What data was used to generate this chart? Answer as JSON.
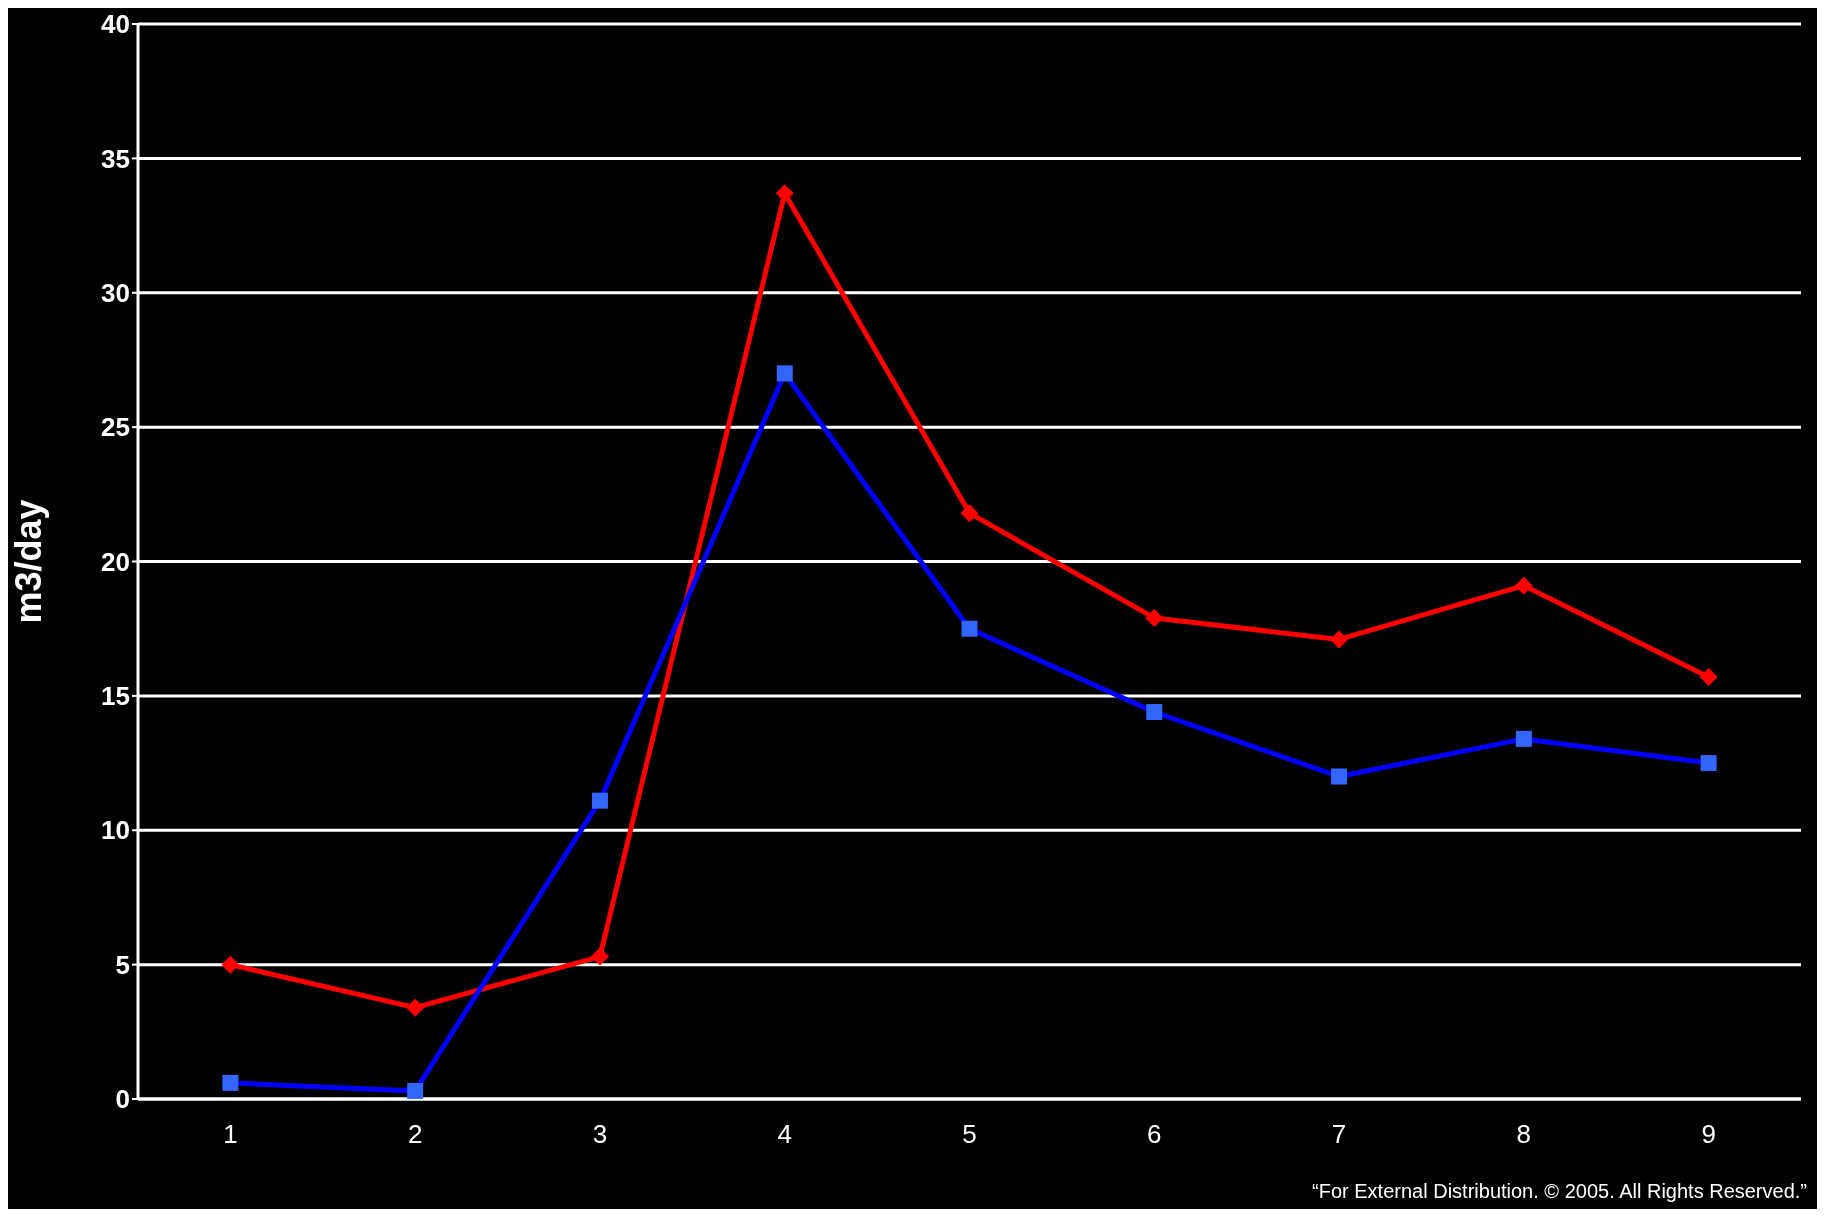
{
  "chart_data": {
    "type": "line",
    "ylabel": "m3/day",
    "categories": [
      "1",
      "2",
      "3",
      "4",
      "5",
      "6",
      "7",
      "8",
      "9"
    ],
    "series": [
      {
        "color": "#ff0000",
        "marker": "diamond",
        "values": [
          5.0,
          3.4,
          5.3,
          33.7,
          21.8,
          17.9,
          17.1,
          19.1,
          15.7
        ]
      },
      {
        "color": "#0000ff",
        "marker": "square",
        "values": [
          0.6,
          0.3,
          11.1,
          27.0,
          17.5,
          14.4,
          12.0,
          13.4,
          12.5
        ]
      }
    ],
    "ylim": [
      0,
      40
    ],
    "yticks": [
      0,
      5,
      10,
      15,
      20,
      25,
      30,
      35,
      40
    ],
    "grid": "y",
    "line_style": "solid",
    "annotations": [
      "“For External Distribution. © 2005. All Rights Reserved.”"
    ]
  }
}
